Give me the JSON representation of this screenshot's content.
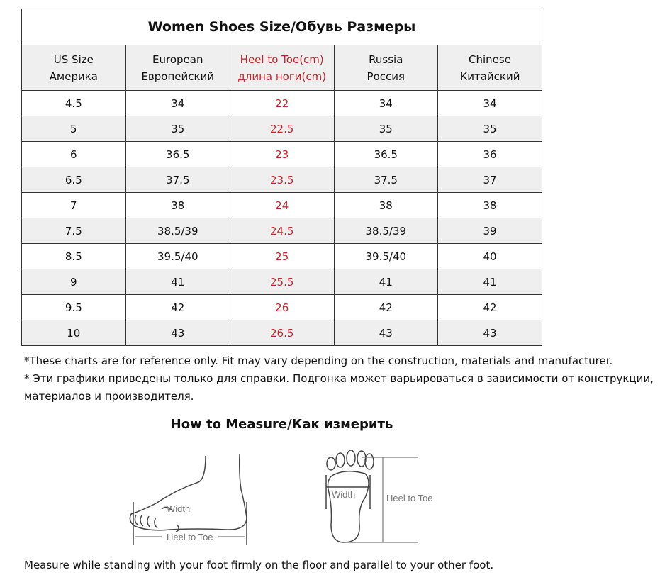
{
  "table": {
    "title": "Women Shoes Size/Обувь Размеры",
    "headers": [
      {
        "en": "US Size",
        "ru": "Америка"
      },
      {
        "en": "European",
        "ru": "Европейский"
      },
      {
        "en": "Heel to Toe(cm)",
        "ru": "длина ноги(cm)"
      },
      {
        "en": "Russia",
        "ru": "Россия"
      },
      {
        "en": "Chinese",
        "ru": "Китайский"
      }
    ],
    "rows": [
      [
        "4.5",
        "34",
        "22",
        "34",
        "34"
      ],
      [
        "5",
        "35",
        "22.5",
        "35",
        "35"
      ],
      [
        "6",
        "36.5",
        "23",
        "36.5",
        "36"
      ],
      [
        "6.5",
        "37.5",
        "23.5",
        "37.5",
        "37"
      ],
      [
        "7",
        "38",
        "24",
        "38",
        "38"
      ],
      [
        "7.5",
        "38.5/39",
        "24.5",
        "38.5/39",
        "39"
      ],
      [
        "8.5",
        "39.5/40",
        "25",
        "39.5/40",
        "40"
      ],
      [
        "9",
        "41",
        "25.5",
        "41",
        "41"
      ],
      [
        "9.5",
        "42",
        "26",
        "42",
        "42"
      ],
      [
        "10",
        "43",
        "26.5",
        "43",
        "43"
      ]
    ],
    "highlight_color": "#c0262b"
  },
  "notes": {
    "en": "*These charts are for reference only. Fit may vary depending on the construction, materials and manufacturer.",
    "ru_line1": "* Эти графики приведены только для справки. Подгонка может варьироваться в зависимости от конструкции,",
    "ru_line2": "материалов и производителя."
  },
  "measure": {
    "title": "How to Measure/Как измерить",
    "side_width": "Width",
    "side_heel_to_toe": "Heel to Toe",
    "sole_width": "Width",
    "sole_heel_to_toe": "Heel to Toe",
    "instruction": "Measure while standing with your foot firmly on the floor and parallel to your other foot."
  }
}
